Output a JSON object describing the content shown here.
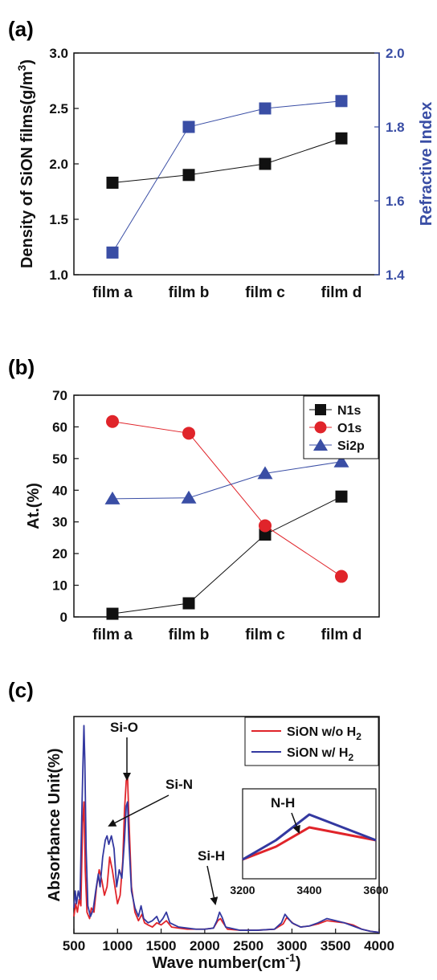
{
  "panels": {
    "a": "(a)",
    "b": "(b)",
    "c": "(c)"
  },
  "colors": {
    "black": "#111111",
    "blue": "#3a4ea5",
    "red": "#e0242a",
    "navy": "#3338a0"
  },
  "chart_data": [
    {
      "type": "line",
      "panel": "(a)",
      "categories": [
        "film a",
        "film b",
        "film c",
        "film d"
      ],
      "series": [
        {
          "values": [
            1.83,
            1.9,
            2.0,
            2.23
          ],
          "axis": "left",
          "color": "#111111",
          "marker": "square"
        },
        {
          "values": [
            1.46,
            1.8,
            1.85,
            1.87
          ],
          "axis": "right",
          "color": "#3a4ea5",
          "marker": "square"
        }
      ],
      "ylabel": "Density of SiON films(g/m3)",
      "ylabel_main": "Density of SiON films(g/m",
      "ylabel_sup": "3",
      "ylabel_end": ")",
      "y2label": "Refractive Index",
      "ylim": [
        1.0,
        3.0
      ],
      "y2lim": [
        1.4,
        2.0
      ],
      "yticks": [
        "1.0",
        "1.5",
        "2.0",
        "2.5",
        "3.0"
      ],
      "y2ticks": [
        "1.4",
        "1.6",
        "1.8",
        "2.0"
      ]
    },
    {
      "type": "line",
      "panel": "(b)",
      "categories": [
        "film a",
        "film b",
        "film c",
        "film d"
      ],
      "series": [
        {
          "name": "N1s",
          "values": [
            1,
            4.3,
            26,
            38
          ],
          "color": "#111111",
          "marker": "square"
        },
        {
          "name": "O1s",
          "values": [
            61.7,
            58,
            28.8,
            12.8
          ],
          "color": "#e0242a",
          "marker": "circle"
        },
        {
          "name": "Si2p",
          "values": [
            37.3,
            37.6,
            45.3,
            49
          ],
          "color": "#3a4ea5",
          "marker": "triangle"
        }
      ],
      "ylabel": "At.(%)",
      "ylim": [
        0,
        70
      ],
      "yticks": [
        "0",
        "10",
        "20",
        "30",
        "40",
        "50",
        "60",
        "70"
      ],
      "legend": "top-right"
    },
    {
      "type": "line",
      "panel": "(c)",
      "xlabel": "Wave number(cm-1)",
      "xlabel_main": "Wave number(cm",
      "xlabel_sup": "-1",
      "xlabel_end": ")",
      "ylabel": "Absorbance Unit(%)",
      "xlim": [
        500,
        4000
      ],
      "xticks": [
        "500",
        "1000",
        "1500",
        "2000",
        "2500",
        "3000",
        "3500",
        "4000"
      ],
      "legend": "top-right",
      "series": [
        {
          "name": "SiON w/o H2",
          "label_main": "SiON w/o H",
          "label_sub": "2",
          "color": "#e0242a",
          "points": [
            [
              500,
              0.08
            ],
            [
              520,
              0.14
            ],
            [
              540,
              0.1
            ],
            [
              560,
              0.16
            ],
            [
              580,
              0.13
            ],
            [
              600,
              0.52
            ],
            [
              615,
              0.62
            ],
            [
              630,
              0.3
            ],
            [
              650,
              0.1
            ],
            [
              680,
              0.07
            ],
            [
              700,
              0.12
            ],
            [
              730,
              0.1
            ],
            [
              760,
              0.22
            ],
            [
              790,
              0.3
            ],
            [
              820,
              0.25
            ],
            [
              850,
              0.18
            ],
            [
              880,
              0.22
            ],
            [
              910,
              0.36
            ],
            [
              940,
              0.3
            ],
            [
              970,
              0.22
            ],
            [
              1000,
              0.14
            ],
            [
              1030,
              0.18
            ],
            [
              1060,
              0.34
            ],
            [
              1080,
              0.58
            ],
            [
              1100,
              0.72
            ],
            [
              1115,
              0.74
            ],
            [
              1130,
              0.55
            ],
            [
              1160,
              0.22
            ],
            [
              1200,
              0.1
            ],
            [
              1240,
              0.06
            ],
            [
              1280,
              0.09
            ],
            [
              1310,
              0.05
            ],
            [
              1350,
              0.04
            ],
            [
              1400,
              0.03
            ],
            [
              1450,
              0.05
            ],
            [
              1500,
              0.04
            ],
            [
              1560,
              0.06
            ],
            [
              1620,
              0.03
            ],
            [
              1700,
              0.025
            ],
            [
              1800,
              0.02
            ],
            [
              1900,
              0.02
            ],
            [
              2000,
              0.02
            ],
            [
              2100,
              0.025
            ],
            [
              2150,
              0.06
            ],
            [
              2180,
              0.07
            ],
            [
              2210,
              0.05
            ],
            [
              2260,
              0.02
            ],
            [
              2400,
              0.015
            ],
            [
              2600,
              0.015
            ],
            [
              2800,
              0.02
            ],
            [
              2900,
              0.045
            ],
            [
              2940,
              0.075
            ],
            [
              2980,
              0.06
            ],
            [
              3020,
              0.045
            ],
            [
              3100,
              0.03
            ],
            [
              3200,
              0.035
            ],
            [
              3300,
              0.045
            ],
            [
              3400,
              0.06
            ],
            [
              3500,
              0.055
            ],
            [
              3600,
              0.05
            ],
            [
              3700,
              0.04
            ],
            [
              3800,
              0.02
            ],
            [
              3900,
              0.01
            ],
            [
              4000,
              0.005
            ]
          ]
        },
        {
          "name": "SiON w/ H2",
          "label_main": "SiON w/   H",
          "label_sub": "2",
          "color": "#3338a0",
          "points": [
            [
              500,
              0.12
            ],
            [
              515,
              0.2
            ],
            [
              530,
              0.14
            ],
            [
              550,
              0.2
            ],
            [
              570,
              0.16
            ],
            [
              590,
              0.55
            ],
            [
              605,
              0.82
            ],
            [
              615,
              0.98
            ],
            [
              625,
              0.82
            ],
            [
              640,
              0.4
            ],
            [
              660,
              0.13
            ],
            [
              690,
              0.08
            ],
            [
              720,
              0.11
            ],
            [
              750,
              0.2
            ],
            [
              780,
              0.28
            ],
            [
              800,
              0.22
            ],
            [
              830,
              0.36
            ],
            [
              860,
              0.44
            ],
            [
              880,
              0.46
            ],
            [
              900,
              0.42
            ],
            [
              930,
              0.46
            ],
            [
              960,
              0.4
            ],
            [
              990,
              0.22
            ],
            [
              1020,
              0.3
            ],
            [
              1050,
              0.26
            ],
            [
              1080,
              0.44
            ],
            [
              1100,
              0.6
            ],
            [
              1115,
              0.62
            ],
            [
              1130,
              0.44
            ],
            [
              1160,
              0.2
            ],
            [
              1200,
              0.12
            ],
            [
              1240,
              0.08
            ],
            [
              1270,
              0.13
            ],
            [
              1300,
              0.07
            ],
            [
              1350,
              0.05
            ],
            [
              1400,
              0.06
            ],
            [
              1450,
              0.08
            ],
            [
              1480,
              0.05
            ],
            [
              1520,
              0.07
            ],
            [
              1560,
              0.1
            ],
            [
              1600,
              0.05
            ],
            [
              1700,
              0.03
            ],
            [
              1800,
              0.025
            ],
            [
              1900,
              0.02
            ],
            [
              2000,
              0.02
            ],
            [
              2100,
              0.025
            ],
            [
              2140,
              0.06
            ],
            [
              2170,
              0.1
            ],
            [
              2200,
              0.075
            ],
            [
              2240,
              0.03
            ],
            [
              2400,
              0.015
            ],
            [
              2600,
              0.015
            ],
            [
              2800,
              0.02
            ],
            [
              2880,
              0.05
            ],
            [
              2920,
              0.09
            ],
            [
              2960,
              0.07
            ],
            [
              3000,
              0.05
            ],
            [
              3100,
              0.03
            ],
            [
              3200,
              0.035
            ],
            [
              3300,
              0.05
            ],
            [
              3400,
              0.07
            ],
            [
              3500,
              0.06
            ],
            [
              3600,
              0.05
            ],
            [
              3700,
              0.035
            ],
            [
              3800,
              0.02
            ],
            [
              3900,
              0.01
            ],
            [
              4000,
              0.005
            ]
          ]
        }
      ],
      "annotations": [
        "Si-O",
        "Si-N",
        "Si-H"
      ],
      "inset": {
        "annotation": "N-H",
        "xlim": [
          3200,
          3600
        ],
        "xticks": [
          "3200",
          "3400",
          "3600"
        ]
      }
    }
  ]
}
